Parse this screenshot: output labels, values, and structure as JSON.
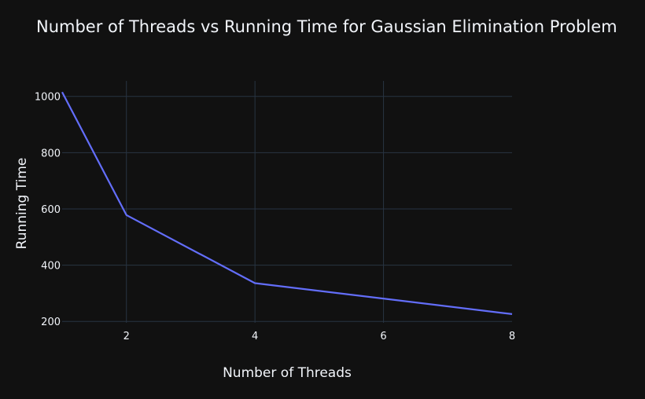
{
  "chart_data": {
    "type": "line",
    "title": "Number of Threads vs Running Time for Gaussian Elimination Problem",
    "xlabel": "Number of Threads",
    "ylabel": "Running Time",
    "xlim": [
      1,
      8
    ],
    "ylim": [
      195,
      1055
    ],
    "x_ticks": [
      2,
      4,
      6,
      8
    ],
    "y_ticks": [
      200,
      400,
      600,
      800,
      1000
    ],
    "grid": true,
    "series": [
      {
        "x": [
          1,
          2,
          4,
          8
        ],
        "y": [
          1015,
          578,
          336,
          226
        ],
        "color": "#636efa"
      }
    ]
  }
}
